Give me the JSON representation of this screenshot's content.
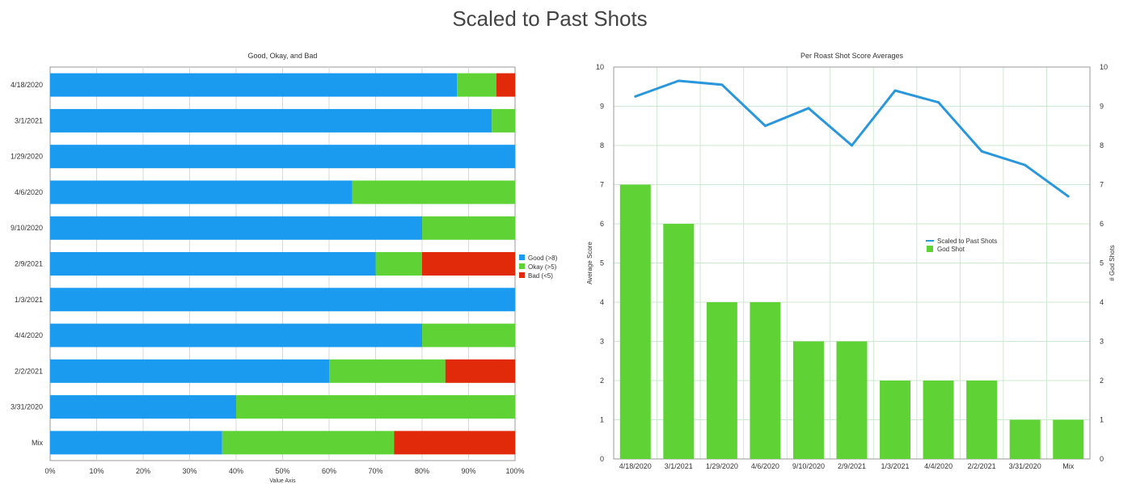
{
  "title": "Scaled to Past Shots",
  "chart_data": [
    {
      "type": "bar",
      "orientation": "horizontal",
      "stacked": true,
      "title": "Good, Okay, and Bad",
      "xlabel": "Value Axis",
      "categories": [
        "4/18/2020",
        "3/1/2021",
        "1/29/2020",
        "4/6/2020",
        "9/10/2020",
        "2/9/2021",
        "1/3/2021",
        "4/4/2020",
        "2/2/2021",
        "3/31/2020",
        "Mix"
      ],
      "xlim": [
        0,
        100
      ],
      "xticks": [
        "0%",
        "10%",
        "20%",
        "30%",
        "40%",
        "50%",
        "60%",
        "70%",
        "80%",
        "90%",
        "100%"
      ],
      "legend_position": "right",
      "series": [
        {
          "name": "Good (>8)",
          "color": "#1a9bf0",
          "values": [
            87.5,
            95,
            100,
            65,
            80,
            70,
            100,
            80,
            60,
            40,
            37
          ]
        },
        {
          "name": "Okay (>5)",
          "color": "#5fd335",
          "values": [
            8.5,
            5,
            0,
            35,
            20,
            10,
            0,
            20,
            25,
            60,
            37
          ]
        },
        {
          "name": "Bad (<5)",
          "color": "#e02a0a",
          "values": [
            4,
            0,
            0,
            0,
            0,
            20,
            0,
            0,
            15,
            0,
            26
          ]
        }
      ]
    },
    {
      "type": "bar+line",
      "title": "Per Roast Shot Score Averages",
      "ylabel": "Average Score",
      "y2label": "# God Shots",
      "categories": [
        "4/18/2020",
        "3/1/2021",
        "1/29/2020",
        "4/6/2020",
        "9/10/2020",
        "2/9/2021",
        "1/3/2021",
        "4/4/2020",
        "2/2/2021",
        "3/31/2020",
        "Mix"
      ],
      "ylim": [
        0,
        10
      ],
      "y2lim": [
        0,
        10
      ],
      "yticks": [
        "0",
        "1",
        "2",
        "3",
        "4",
        "5",
        "6",
        "7",
        "8",
        "9",
        "10"
      ],
      "legend_position": "center-right",
      "series": [
        {
          "name": "Scaled to Past Shots",
          "type": "line",
          "color": "#2a97dc",
          "values": [
            9.25,
            9.65,
            9.55,
            8.5,
            8.95,
            8.0,
            9.4,
            9.1,
            7.85,
            7.5,
            6.7
          ]
        },
        {
          "name": "God Shot",
          "type": "bar",
          "color": "#5fd335",
          "values": [
            7,
            6,
            4,
            4,
            3,
            3,
            2,
            2,
            2,
            1,
            1
          ]
        }
      ]
    }
  ]
}
